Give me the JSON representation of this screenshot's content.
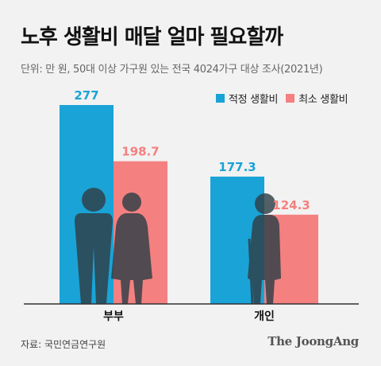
{
  "header": {
    "title": "노후 생활비 매달 얼마 필요할까",
    "subtitle": "단위: 만 원, 50대 이상 가구원 있는 전국 4024가구 대상 조사(2021년)"
  },
  "chart_data": {
    "type": "bar",
    "categories": [
      "부부",
      "개인"
    ],
    "series": [
      {
        "name": "적정 생활비",
        "values": [
          277,
          177.3
        ],
        "labels": [
          "277",
          "177.3"
        ],
        "color": "#1aa3d6"
      },
      {
        "name": "최소 생활비",
        "values": [
          198.7,
          124.3
        ],
        "labels": [
          "198.7",
          "124.3"
        ],
        "color": "#f58080"
      }
    ],
    "ylim": [
      0,
      277
    ],
    "grid": false,
    "legend": "top-right"
  },
  "footer": {
    "source": "자료: 국민연금연구원",
    "logo": "The JoongAng"
  },
  "colors": {
    "background": "#f2f2f2",
    "silhouette": "#2f3f47"
  },
  "icons": {
    "couple": "elderly-couple-silhouette",
    "single": "elderly-person-with-cane-silhouette"
  }
}
